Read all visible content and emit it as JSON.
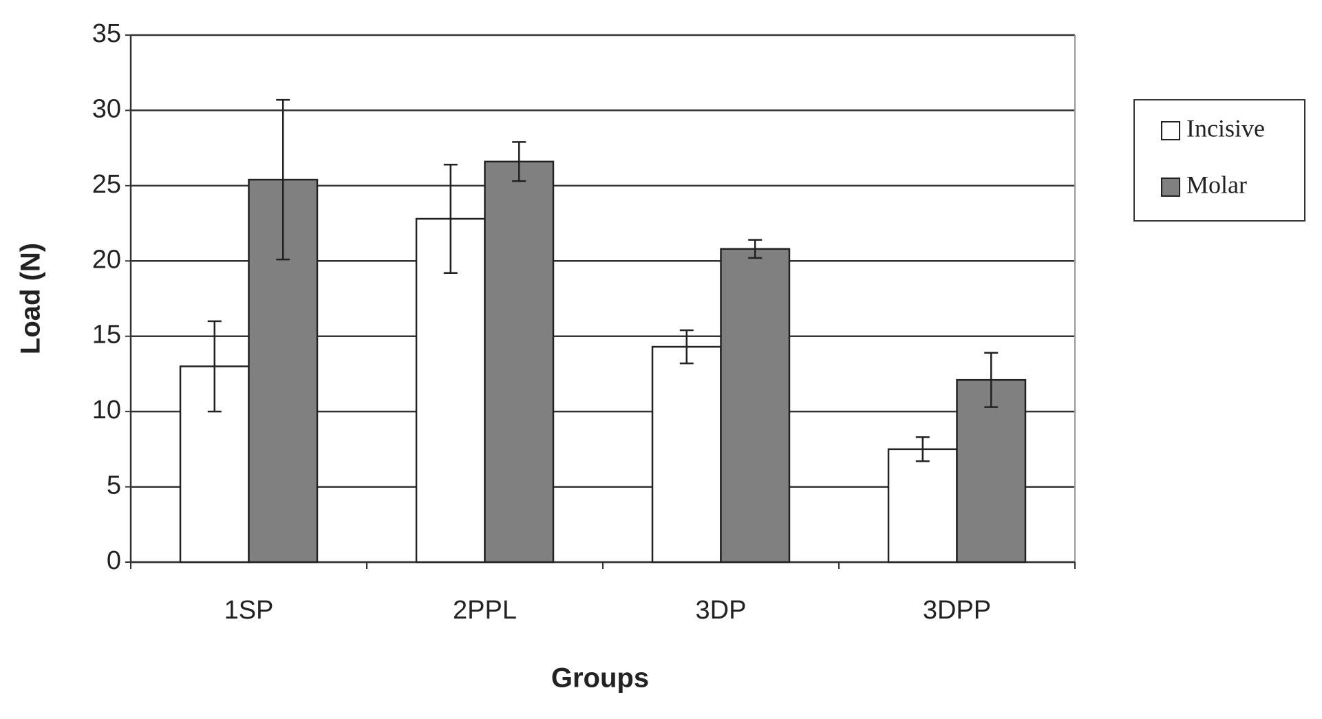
{
  "chart_data": {
    "type": "bar",
    "x_label": "Groups",
    "y_label": "Load (N)",
    "categories": [
      "1SP",
      "2PPL",
      "3DP",
      "3DPP"
    ],
    "series": [
      {
        "name": "Incisive",
        "color": "#ffffff",
        "values": [
          13.0,
          22.8,
          14.3,
          7.5
        ],
        "errors": [
          3.0,
          3.6,
          1.1,
          0.8
        ]
      },
      {
        "name": "Molar",
        "color": "#808080",
        "values": [
          25.4,
          26.6,
          20.8,
          12.1
        ],
        "errors": [
          5.3,
          1.3,
          0.6,
          1.8
        ]
      }
    ],
    "ylim": [
      0,
      35
    ],
    "yticks": [
      0,
      5,
      10,
      15,
      20,
      25,
      30,
      35
    ],
    "grid": true,
    "legend": "right"
  }
}
